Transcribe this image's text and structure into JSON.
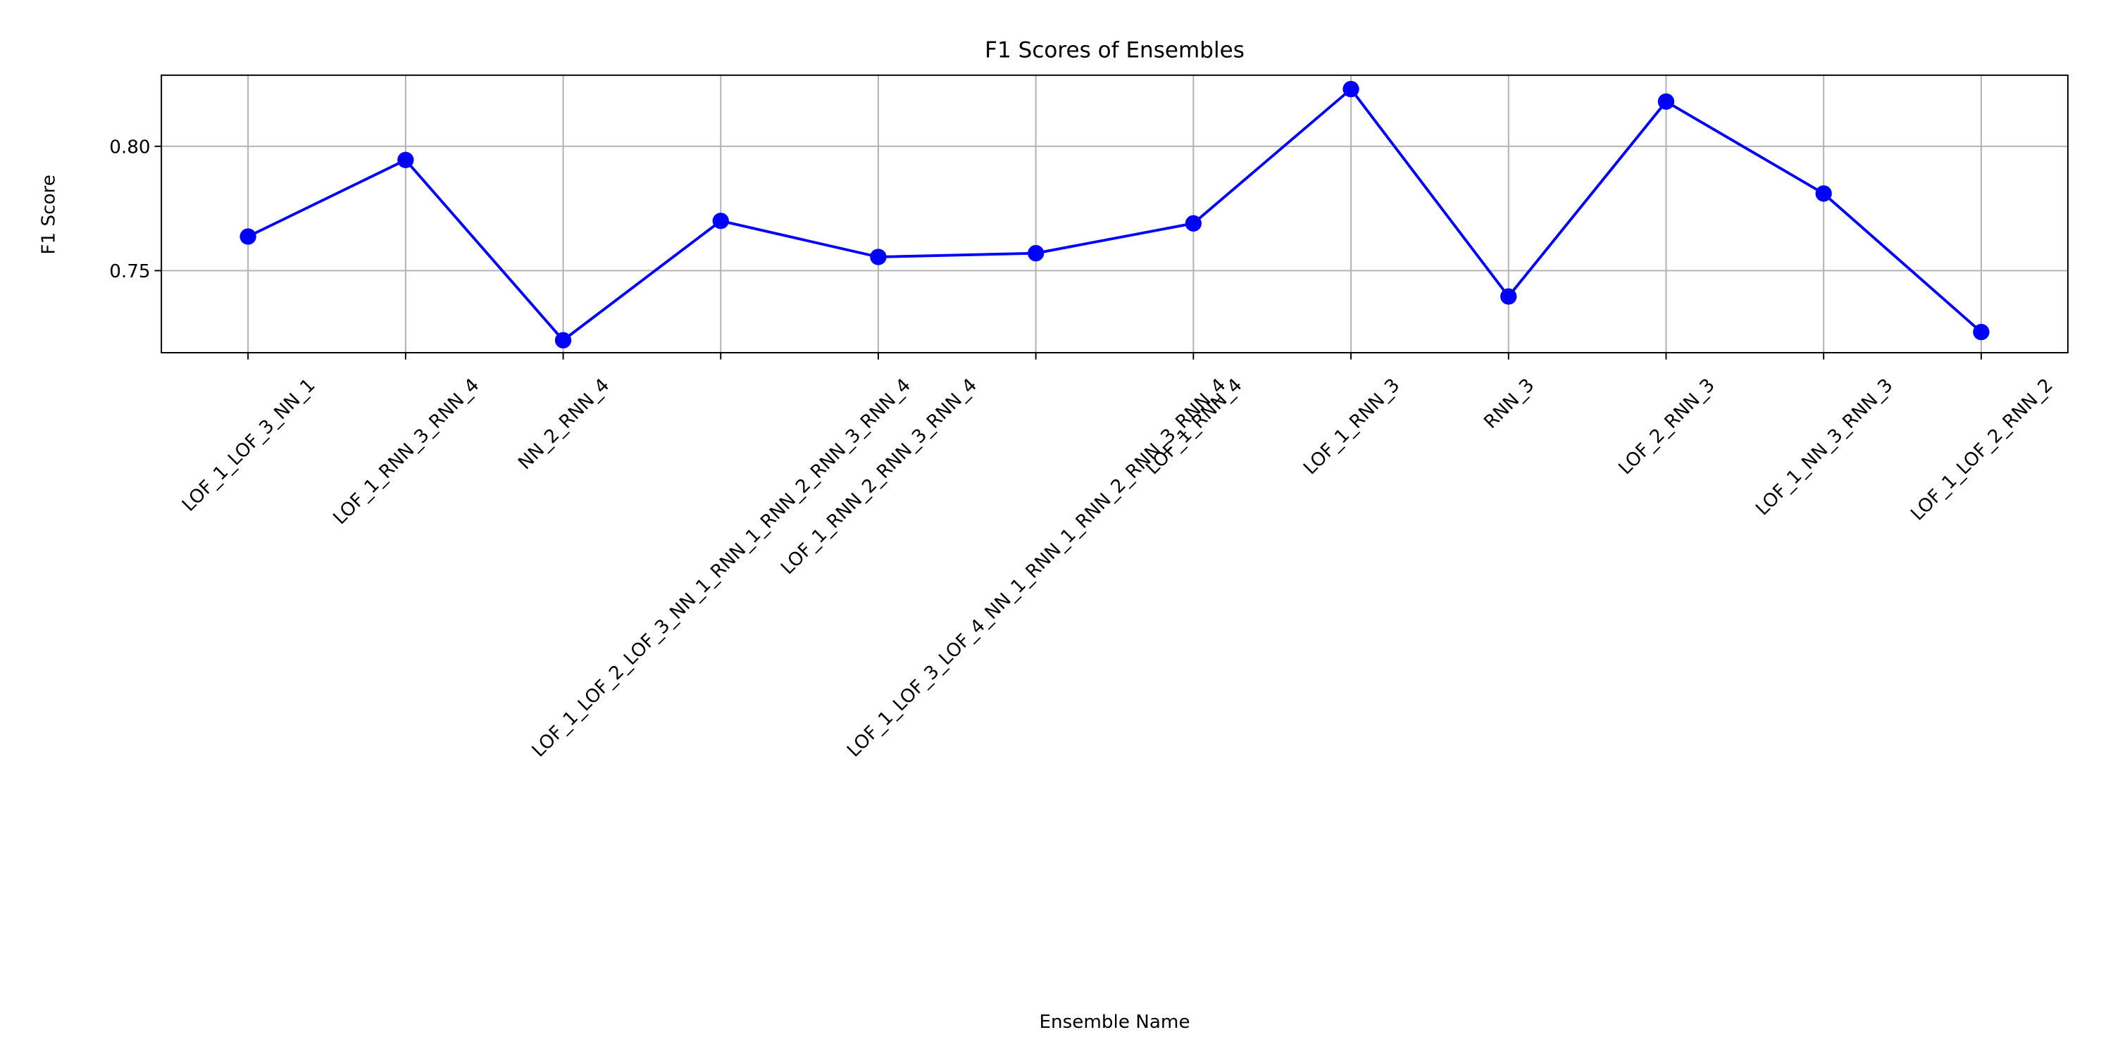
{
  "chart_data": {
    "type": "line",
    "title": "F1 Scores of Ensembles",
    "xlabel": "Ensemble Name",
    "ylabel": "F1 Score",
    "categories": [
      "LOF_1_LOF_3_NN_1",
      "LOF_1_RNN_3_RNN_4",
      "NN_2_RNN_4",
      "LOF_1_LOF_2_LOF_3_NN_1_RNN_1_RNN_2_RNN_3_RNN_4",
      "LOF_1_RNN_2_RNN_3_RNN_4",
      "LOF_1_LOF_3_LOF_4_NN_1_RNN_1_RNN_2_RNN_3_RNN_4",
      "LOF_1_RNN_4",
      "LOF_1_RNN_3",
      "RNN_3",
      "LOF_2_RNN_3",
      "LOF_1_NN_3_RNN_3",
      "LOF_1_LOF_2_RNN_2"
    ],
    "values": [
      0.7637,
      0.7945,
      0.722,
      0.77,
      0.7555,
      0.757,
      0.769,
      0.823,
      0.7396,
      0.818,
      0.781,
      0.7253
    ],
    "color": "#0000ff",
    "marker": "o",
    "ylim": [
      0.717,
      0.8286
    ],
    "yticks": [
      {
        "value": 0.75,
        "label": "0.75"
      },
      {
        "value": 0.8,
        "label": "0.80"
      }
    ],
    "grid": true
  }
}
